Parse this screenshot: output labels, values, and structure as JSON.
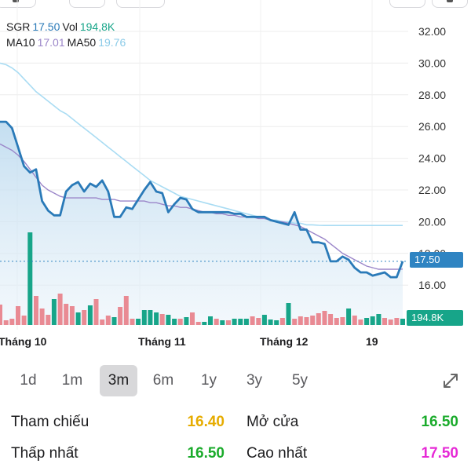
{
  "legend": {
    "symbol": "SGR",
    "price": "17.50",
    "vol_label": "Vol",
    "vol_value": "194,8K",
    "ma10_label": "MA10",
    "ma10_value": "17.01",
    "ma50_label": "MA50",
    "ma50_value": "19.76"
  },
  "price_tag": "17.50",
  "volume_tag": "194.8K",
  "periods": [
    "1d",
    "1m",
    "3m",
    "6m",
    "1y",
    "3y",
    "5y"
  ],
  "active_period": "3m",
  "stats": {
    "reference_label": "Tham chiếu",
    "reference_value": "16.40",
    "open_label": "Mở cửa",
    "open_value": "16.50",
    "low_label": "Thấp nhất",
    "low_value": "16.50",
    "high_label": "Cao nhất",
    "high_value": "17.50"
  },
  "colors": {
    "price_line": "#2a7ab8",
    "ma10": "#9b86c9",
    "ma50": "#a9dcf3",
    "up": "#17a589",
    "down": "#e98a93",
    "reference": "#e6ac00",
    "open": "#1aab2b",
    "low": "#1aab2b",
    "high": "#e62ad6"
  },
  "chart_data": {
    "type": "line",
    "y_ticks": [
      "32.00",
      "30.00",
      "28.00",
      "26.00",
      "24.00",
      "22.00",
      "20.00",
      "18.00",
      "16.00"
    ],
    "ylim": [
      15,
      33
    ],
    "x_labels": [
      "Tháng 10",
      "Tháng 11",
      "Tháng 12",
      "19"
    ],
    "series": [
      {
        "name": "SGR",
        "values": [
          26.3,
          26.3,
          25.9,
          24.7,
          23.5,
          23.1,
          23.3,
          21.3,
          20.7,
          20.4,
          20.4,
          21.9,
          22.3,
          22.5,
          21.9,
          22.4,
          22.2,
          22.6,
          21.9,
          20.3,
          20.3,
          20.9,
          20.8,
          21.4,
          22.0,
          22.5,
          21.9,
          21.8,
          20.6,
          21.1,
          21.5,
          21.4,
          20.8,
          20.6,
          20.6,
          20.6,
          20.6,
          20.6,
          20.6,
          20.5,
          20.5,
          20.3,
          20.3,
          20.3,
          20.3,
          20.1,
          20.0,
          19.9,
          19.8,
          20.6,
          19.5,
          19.5,
          18.7,
          18.7,
          18.6,
          17.5,
          17.5,
          17.8,
          17.6,
          17.1,
          16.8,
          16.8,
          16.6,
          16.7,
          16.8,
          16.5,
          16.5,
          17.5
        ],
        "volume": [
          2.6,
          0.6,
          0.8,
          2.4,
          1.2,
          11.8,
          3.7,
          2.1,
          1.3,
          3.3,
          4.0,
          2.7,
          2.4,
          1.6,
          1.9,
          2.5,
          3.3,
          0.7,
          1.2,
          1.0,
          2.3,
          3.7,
          0.8,
          0.8,
          1.9,
          1.9,
          1.6,
          1.4,
          1.3,
          0.8,
          0.8,
          1.0,
          1.6,
          0.4,
          0.4,
          1.1,
          0.8,
          0.6,
          0.6,
          0.8,
          0.8,
          0.8,
          1.1,
          0.9,
          1.3,
          0.7,
          0.6,
          0.9,
          2.8,
          0.8,
          1.1,
          1.0,
          1.2,
          1.5,
          1.8,
          1.4,
          0.9,
          1.0,
          2.1,
          1.2,
          0.7,
          0.9,
          1.1,
          1.4,
          0.9,
          0.7,
          0.9,
          0.8
        ],
        "volume_up": [
          false,
          false,
          false,
          false,
          false,
          true,
          false,
          false,
          false,
          true,
          false,
          false,
          false,
          true,
          false,
          true,
          false,
          false,
          false,
          true,
          false,
          false,
          false,
          true,
          true,
          true,
          true,
          false,
          true,
          true,
          false,
          true,
          false,
          false,
          true,
          true,
          false,
          true,
          false,
          true,
          true,
          true,
          false,
          false,
          true,
          true,
          true,
          false,
          true,
          false,
          false,
          false,
          false,
          false,
          false,
          false,
          false,
          false,
          true,
          false,
          false,
          true,
          true,
          true,
          false,
          false,
          false,
          true
        ]
      },
      {
        "name": "MA10",
        "values": [
          24.9,
          24.7,
          24.5,
          24.2,
          23.8,
          23.3,
          22.8,
          22.3,
          22.0,
          21.8,
          21.6,
          21.5,
          21.5,
          21.5,
          21.5,
          21.5,
          21.5,
          21.4,
          21.4,
          21.4,
          21.3,
          21.3,
          21.3,
          21.3,
          21.3,
          21.2,
          21.2,
          21.1,
          21.0,
          21.0,
          20.9,
          20.9,
          20.8,
          20.7,
          20.6,
          20.6,
          20.5,
          20.5,
          20.4,
          20.4,
          20.3,
          20.3,
          20.3,
          20.2,
          20.2,
          20.1,
          20.0,
          20.0,
          19.9,
          19.8,
          19.7,
          19.5,
          19.3,
          19.1,
          18.9,
          18.6,
          18.3,
          18.0,
          17.8,
          17.6,
          17.4,
          17.2,
          17.1,
          17.0,
          17.0,
          17.0,
          17.0,
          17.01
        ]
      },
      {
        "name": "MA50",
        "values": [
          30.0,
          29.9,
          29.7,
          29.4,
          29.0,
          28.6,
          28.2,
          27.9,
          27.6,
          27.3,
          27.0,
          26.8,
          26.5,
          26.2,
          25.9,
          25.6,
          25.3,
          25.0,
          24.7,
          24.4,
          24.1,
          23.8,
          23.5,
          23.2,
          22.9,
          22.6,
          22.4,
          22.2,
          22.0,
          21.8,
          21.6,
          21.5,
          21.4,
          21.3,
          21.2,
          21.1,
          21.0,
          20.9,
          20.8,
          20.7,
          20.6,
          20.5,
          20.4,
          20.3,
          20.2,
          20.1,
          20.1,
          20.0,
          20.0,
          19.9,
          19.9,
          19.8,
          19.8,
          19.77,
          19.76,
          19.76,
          19.76,
          19.76,
          19.76,
          19.76,
          19.76,
          19.76,
          19.76,
          19.76,
          19.76,
          19.76,
          19.76,
          19.76
        ]
      }
    ],
    "last_price": 17.5
  }
}
